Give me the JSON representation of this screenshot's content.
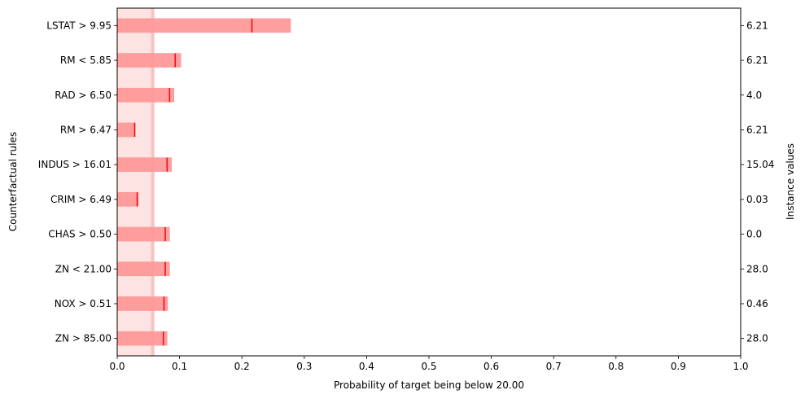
{
  "chart_data": {
    "type": "bar",
    "orientation": "horizontal",
    "xlabel": "Probability of target being below 20.00",
    "ylabel": "Counterfactual rules",
    "y2label": "Instance values",
    "xlim": [
      0,
      1.0
    ],
    "xticks": [
      "0.0",
      "0.1",
      "0.2",
      "0.3",
      "0.4",
      "0.5",
      "0.6",
      "0.7",
      "0.8",
      "0.9",
      "1.0"
    ],
    "baseline_band": {
      "low": 0.0,
      "high": 0.057,
      "median": 0.057
    },
    "rules": [
      {
        "label": "LSTAT > 9.95",
        "instance_value": "6.21",
        "low": 0.0,
        "high": 0.278,
        "median": 0.216
      },
      {
        "label": "RM < 5.85",
        "instance_value": "6.21",
        "low": 0.0,
        "high": 0.102,
        "median": 0.093
      },
      {
        "label": "RAD > 6.50",
        "instance_value": "4.0",
        "low": 0.0,
        "high": 0.091,
        "median": 0.084
      },
      {
        "label": "RM > 6.47",
        "instance_value": "6.21",
        "low": 0.0,
        "high": 0.029,
        "median": 0.028
      },
      {
        "label": "INDUS > 16.01",
        "instance_value": "15.04",
        "low": 0.0,
        "high": 0.087,
        "median": 0.08
      },
      {
        "label": "CRIM > 6.49",
        "instance_value": "0.03",
        "low": 0.0,
        "high": 0.034,
        "median": 0.032
      },
      {
        "label": "CHAS > 0.50",
        "instance_value": "0.0",
        "low": 0.0,
        "high": 0.084,
        "median": 0.077
      },
      {
        "label": "ZN < 21.00",
        "instance_value": "28.0",
        "low": 0.0,
        "high": 0.084,
        "median": 0.077
      },
      {
        "label": "NOX > 0.51",
        "instance_value": "0.46",
        "low": 0.0,
        "high": 0.081,
        "median": 0.075
      },
      {
        "label": "ZN > 85.00",
        "instance_value": "28.0",
        "low": 0.0,
        "high": 0.08,
        "median": 0.074
      }
    ],
    "colors": {
      "bar": "#ff9999",
      "median_line": "#e8121a",
      "band": "#fde3e1",
      "band_edge": "#f5c4c0"
    }
  }
}
